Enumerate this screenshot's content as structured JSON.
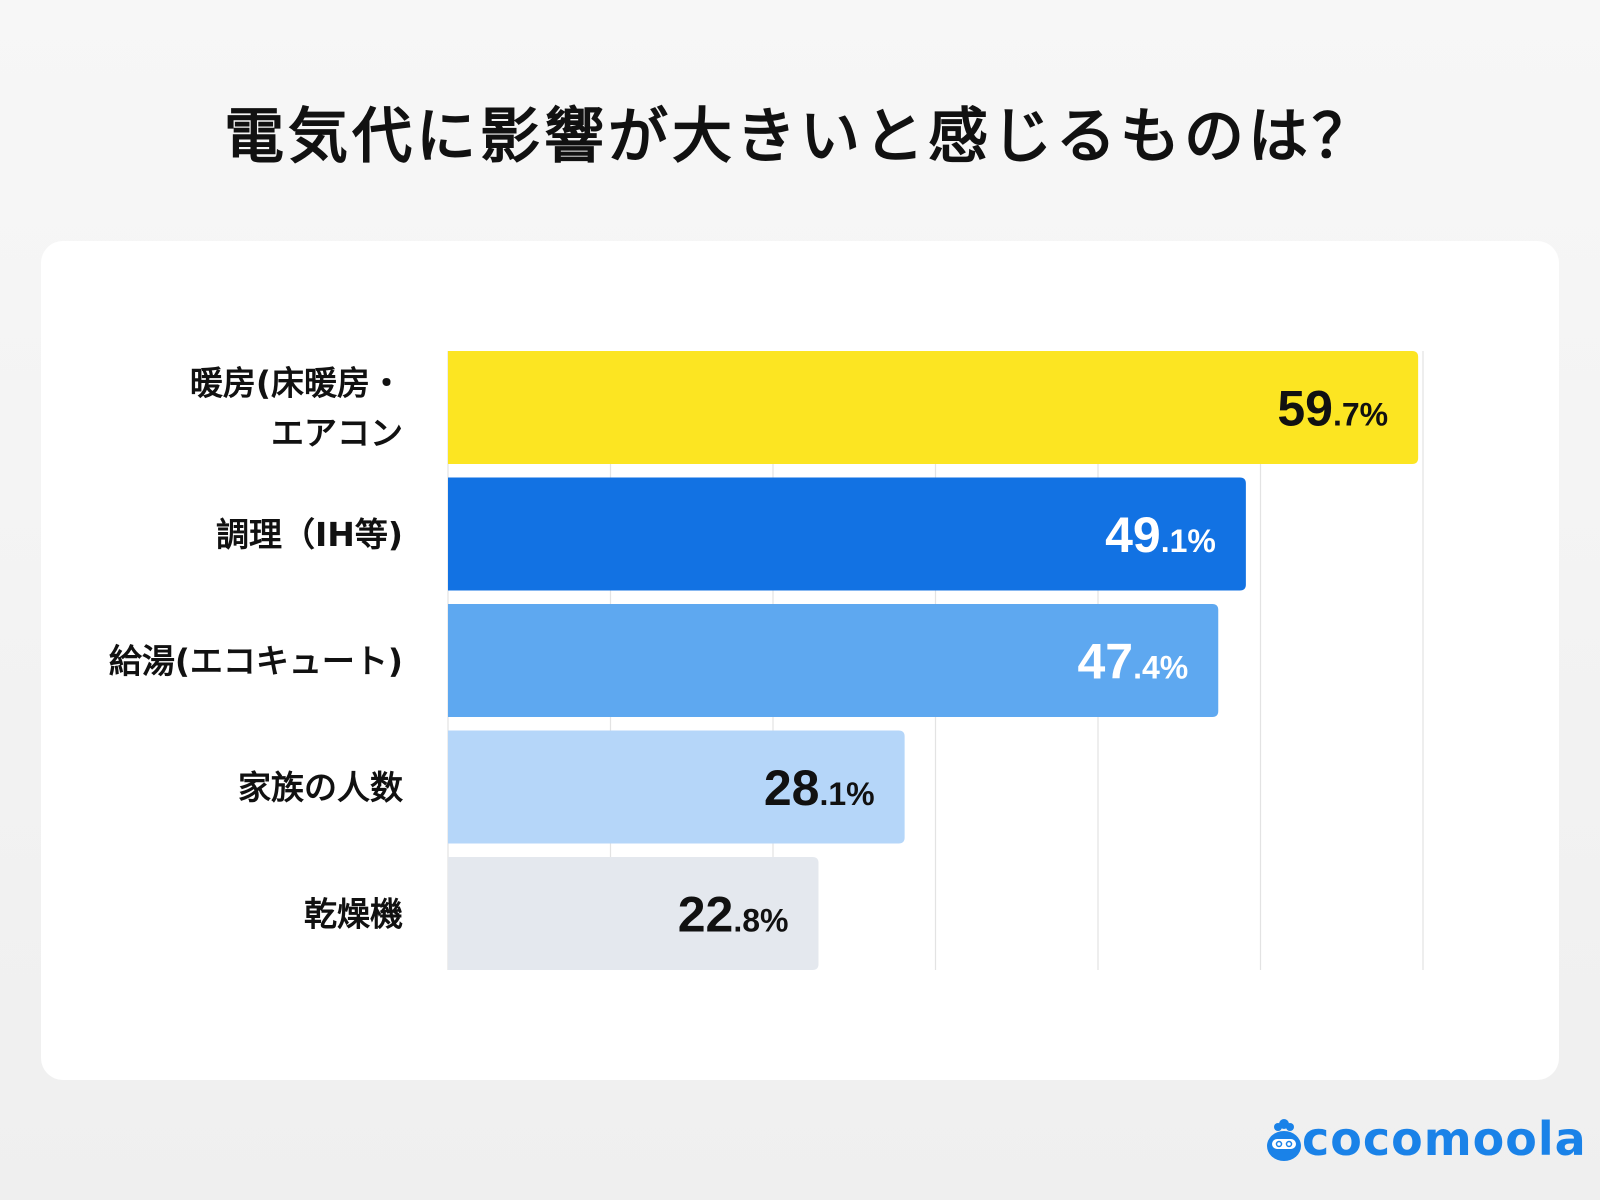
{
  "title": "電気代に影響が大きいと感じるものは？",
  "brand": {
    "name": "cocomoola",
    "color": "#1a82e8"
  },
  "chart_data": {
    "type": "bar",
    "orientation": "horizontal",
    "title": "電気代に影響が大きいと感じるものは？",
    "categories": [
      "暖房(床暖房・エアコン",
      "調理（IH等)",
      "給湯(エコキュート)",
      "家族の人数",
      "乾燥機"
    ],
    "category_lines": [
      [
        "暖房(床暖房・",
        "エアコン"
      ],
      [
        "調理（IH等)"
      ],
      [
        "給湯(エコキュート)"
      ],
      [
        "家族の人数"
      ],
      [
        "乾燥機"
      ]
    ],
    "values": [
      59.7,
      49.1,
      47.4,
      28.1,
      22.8
    ],
    "value_labels": [
      {
        "int": "59",
        "dec": ".7%"
      },
      {
        "int": "49",
        "dec": ".1%"
      },
      {
        "int": "47",
        "dec": ".4%"
      },
      {
        "int": "28",
        "dec": ".1%"
      },
      {
        "int": "22",
        "dec": ".8%"
      }
    ],
    "colors": [
      "#fce522",
      "#1272e3",
      "#5ea8f0",
      "#b5d6f9",
      "#e4e8ee"
    ],
    "label_colors": [
      "#111111",
      "#ffffff",
      "#ffffff",
      "#111111",
      "#111111"
    ],
    "unit": "%",
    "xlim": [
      0,
      60
    ],
    "grid": true,
    "grid_step": 10
  }
}
